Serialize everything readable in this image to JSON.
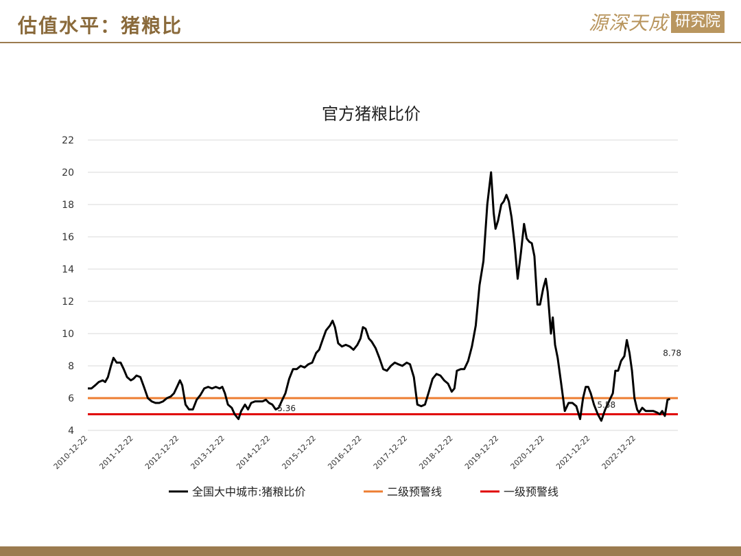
{
  "header": {
    "title": "估值水平：猪粮比",
    "logo_script": "源深天成",
    "logo_seal": "研究院"
  },
  "chart_data": {
    "type": "line",
    "title": "官方猪粮比价",
    "ylim": [
      4,
      22
    ],
    "yticks": [
      4,
      6,
      8,
      10,
      12,
      14,
      16,
      18,
      20,
      22
    ],
    "xlim": [
      "2010-12-22",
      "2023-11-22"
    ],
    "xticks": [
      "2010-12-22",
      "2011-12-22",
      "2012-12-22",
      "2013-12-22",
      "2014-12-22",
      "2015-12-22",
      "2016-12-22",
      "2017-12-22",
      "2018-12-22",
      "2019-12-22",
      "2020-12-22",
      "2021-12-22",
      "2022-12-22"
    ],
    "grid": "horizontal",
    "legend_position": "bottom",
    "series": [
      {
        "name": "全国大中城市:猪粮比价",
        "color": "#000000",
        "points": [
          [
            "2010-12-22",
            6.6
          ],
          [
            "2011-01-20",
            6.6
          ],
          [
            "2011-02-20",
            6.8
          ],
          [
            "2011-03-20",
            7.0
          ],
          [
            "2011-04-20",
            7.1
          ],
          [
            "2011-05-10",
            7.0
          ],
          [
            "2011-06-01",
            7.3
          ],
          [
            "2011-06-25",
            8.0
          ],
          [
            "2011-07-15",
            8.5
          ],
          [
            "2011-08-10",
            8.2
          ],
          [
            "2011-09-10",
            8.2
          ],
          [
            "2011-10-05",
            7.8
          ],
          [
            "2011-11-01",
            7.3
          ],
          [
            "2011-12-01",
            7.1
          ],
          [
            "2011-12-22",
            7.2
          ],
          [
            "2012-01-15",
            7.4
          ],
          [
            "2012-02-15",
            7.3
          ],
          [
            "2012-03-15",
            6.7
          ],
          [
            "2012-04-15",
            6.0
          ],
          [
            "2012-05-15",
            5.8
          ],
          [
            "2012-06-15",
            5.7
          ],
          [
            "2012-07-15",
            5.7
          ],
          [
            "2012-08-15",
            5.8
          ],
          [
            "2012-09-15",
            6.0
          ],
          [
            "2012-10-15",
            6.1
          ],
          [
            "2012-11-10",
            6.3
          ],
          [
            "2012-12-10",
            6.8
          ],
          [
            "2012-12-28",
            7.1
          ],
          [
            "2013-01-15",
            6.8
          ],
          [
            "2013-02-10",
            5.6
          ],
          [
            "2013-03-10",
            5.3
          ],
          [
            "2013-04-10",
            5.3
          ],
          [
            "2013-05-10",
            5.9
          ],
          [
            "2013-06-10",
            6.2
          ],
          [
            "2013-07-10",
            6.6
          ],
          [
            "2013-08-10",
            6.7
          ],
          [
            "2013-09-10",
            6.6
          ],
          [
            "2013-10-10",
            6.7
          ],
          [
            "2013-11-10",
            6.6
          ],
          [
            "2013-12-01",
            6.7
          ],
          [
            "2013-12-22",
            6.3
          ],
          [
            "2014-01-15",
            5.6
          ],
          [
            "2014-02-15",
            5.4
          ],
          [
            "2014-03-10",
            5.0
          ],
          [
            "2014-04-10",
            4.7
          ],
          [
            "2014-05-01",
            5.2
          ],
          [
            "2014-06-01",
            5.6
          ],
          [
            "2014-06-25",
            5.3
          ],
          [
            "2014-07-20",
            5.7
          ],
          [
            "2014-08-20",
            5.8
          ],
          [
            "2014-09-20",
            5.8
          ],
          [
            "2014-10-20",
            5.8
          ],
          [
            "2014-11-15",
            5.9
          ],
          [
            "2014-12-10",
            5.7
          ],
          [
            "2015-01-05",
            5.6
          ],
          [
            "2015-02-01",
            5.3
          ],
          [
            "2015-02-25",
            5.4
          ],
          [
            "2015-03-20",
            5.8
          ],
          [
            "2015-04-20",
            6.3
          ],
          [
            "2015-05-20",
            7.2
          ],
          [
            "2015-06-20",
            7.8
          ],
          [
            "2015-07-20",
            7.8
          ],
          [
            "2015-08-20",
            8.0
          ],
          [
            "2015-09-20",
            7.9
          ],
          [
            "2015-10-20",
            8.1
          ],
          [
            "2015-11-20",
            8.2
          ],
          [
            "2015-12-22",
            8.8
          ],
          [
            "2016-01-15",
            9.0
          ],
          [
            "2016-02-15",
            9.7
          ],
          [
            "2016-03-10",
            10.2
          ],
          [
            "2016-04-10",
            10.5
          ],
          [
            "2016-05-01",
            10.8
          ],
          [
            "2016-05-20",
            10.4
          ],
          [
            "2016-06-15",
            9.4
          ],
          [
            "2016-07-15",
            9.2
          ],
          [
            "2016-08-15",
            9.3
          ],
          [
            "2016-09-15",
            9.2
          ],
          [
            "2016-10-15",
            9.0
          ],
          [
            "2016-11-15",
            9.3
          ],
          [
            "2016-12-10",
            9.7
          ],
          [
            "2016-12-30",
            10.4
          ],
          [
            "2017-01-20",
            10.3
          ],
          [
            "2017-02-15",
            9.7
          ],
          [
            "2017-03-10",
            9.5
          ],
          [
            "2017-04-10",
            9.1
          ],
          [
            "2017-05-10",
            8.5
          ],
          [
            "2017-06-10",
            7.8
          ],
          [
            "2017-07-10",
            7.7
          ],
          [
            "2017-08-10",
            8.0
          ],
          [
            "2017-09-10",
            8.2
          ],
          [
            "2017-10-10",
            8.1
          ],
          [
            "2017-11-10",
            8.0
          ],
          [
            "2017-12-15",
            8.2
          ],
          [
            "2018-01-10",
            8.1
          ],
          [
            "2018-02-10",
            7.3
          ],
          [
            "2018-03-10",
            5.6
          ],
          [
            "2018-04-10",
            5.5
          ],
          [
            "2018-05-10",
            5.6
          ],
          [
            "2018-06-10",
            6.4
          ],
          [
            "2018-07-10",
            7.2
          ],
          [
            "2018-08-10",
            7.5
          ],
          [
            "2018-09-10",
            7.4
          ],
          [
            "2018-10-10",
            7.1
          ],
          [
            "2018-11-10",
            6.9
          ],
          [
            "2018-12-10",
            6.4
          ],
          [
            "2018-12-31",
            6.6
          ],
          [
            "2019-01-20",
            7.7
          ],
          [
            "2019-02-20",
            7.8
          ],
          [
            "2019-03-20",
            7.8
          ],
          [
            "2019-04-20",
            8.3
          ],
          [
            "2019-05-20",
            9.2
          ],
          [
            "2019-06-20",
            10.5
          ],
          [
            "2019-07-20",
            13.0
          ],
          [
            "2019-08-20",
            14.5
          ],
          [
            "2019-09-20",
            18.0
          ],
          [
            "2019-10-20",
            20.0
          ],
          [
            "2019-11-10",
            17.5
          ],
          [
            "2019-11-25",
            16.5
          ],
          [
            "2019-12-15",
            17.0
          ],
          [
            "2020-01-10",
            18.0
          ],
          [
            "2020-01-30",
            18.2
          ],
          [
            "2020-02-20",
            18.6
          ],
          [
            "2020-03-10",
            18.2
          ],
          [
            "2020-04-01",
            17.2
          ],
          [
            "2020-04-25",
            15.6
          ],
          [
            "2020-05-20",
            13.4
          ],
          [
            "2020-06-15",
            15.0
          ],
          [
            "2020-07-10",
            16.8
          ],
          [
            "2020-07-31",
            15.9
          ],
          [
            "2020-08-20",
            15.7
          ],
          [
            "2020-09-10",
            15.6
          ],
          [
            "2020-10-01",
            14.8
          ],
          [
            "2020-10-25",
            11.8
          ],
          [
            "2020-11-15",
            11.8
          ],
          [
            "2020-12-10",
            12.8
          ],
          [
            "2020-12-31",
            13.4
          ],
          [
            "2021-01-15",
            12.6
          ],
          [
            "2021-02-10",
            10.0
          ],
          [
            "2021-02-25",
            11.0
          ],
          [
            "2021-03-15",
            9.3
          ],
          [
            "2021-04-05",
            8.5
          ],
          [
            "2021-05-01",
            7.0
          ],
          [
            "2021-06-01",
            5.2
          ],
          [
            "2021-07-01",
            5.7
          ],
          [
            "2021-08-01",
            5.7
          ],
          [
            "2021-09-01",
            5.5
          ],
          [
            "2021-10-01",
            4.7
          ],
          [
            "2021-10-25",
            6.0
          ],
          [
            "2021-11-15",
            6.7
          ],
          [
            "2021-12-05",
            6.7
          ],
          [
            "2021-12-25",
            6.3
          ],
          [
            "2022-01-20",
            5.6
          ],
          [
            "2022-02-20",
            5.0
          ],
          [
            "2022-03-20",
            4.6
          ],
          [
            "2022-04-20",
            5.3
          ],
          [
            "2022-05-20",
            5.8
          ],
          [
            "2022-06-20",
            6.3
          ],
          [
            "2022-07-10",
            7.7
          ],
          [
            "2022-08-01",
            7.7
          ],
          [
            "2022-08-25",
            8.3
          ],
          [
            "2022-09-20",
            8.6
          ],
          [
            "2022-10-10",
            9.6
          ],
          [
            "2022-10-31",
            8.8
          ],
          [
            "2022-11-20",
            7.7
          ],
          [
            "2022-12-10",
            6.0
          ],
          [
            "2022-12-31",
            5.3
          ],
          [
            "2023-01-15",
            5.1
          ],
          [
            "2023-02-10",
            5.4
          ],
          [
            "2023-03-10",
            5.2
          ],
          [
            "2023-04-10",
            5.2
          ],
          [
            "2023-05-10",
            5.2
          ],
          [
            "2023-06-10",
            5.1
          ],
          [
            "2023-07-01",
            5.0
          ],
          [
            "2023-07-20",
            5.2
          ],
          [
            "2023-08-10",
            4.9
          ],
          [
            "2023-08-31",
            5.9
          ],
          [
            "2023-09-20",
            5.95
          ]
        ]
      },
      {
        "name": "二级预警线",
        "color": "#ed7d31",
        "value": 6
      },
      {
        "name": "一级预警线",
        "color": "#e00000",
        "value": 5
      }
    ],
    "annotations": [
      {
        "text": "5.36",
        "x": "2014-12-22",
        "y": 5.36
      },
      {
        "text": "5.58",
        "x": "2021-12-22",
        "y": 5.58
      },
      {
        "text": "8.78",
        "x": "2023-06-01",
        "y": 8.78
      }
    ]
  }
}
